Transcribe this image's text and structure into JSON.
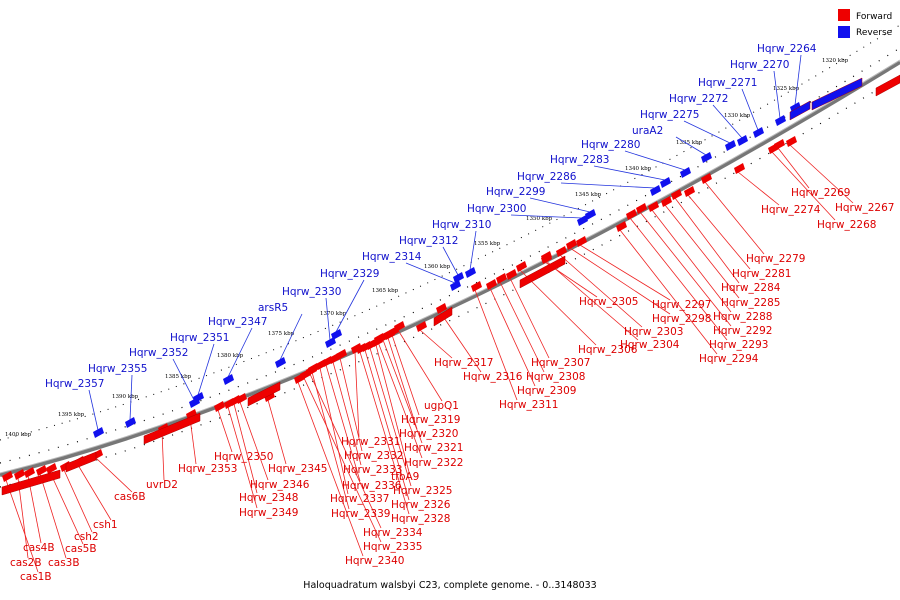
{
  "legend": {
    "forward": {
      "label": "Forward",
      "color": "#ee0000"
    },
    "reverse": {
      "label": "Reverse",
      "color": "#1111ee"
    }
  },
  "caption": "Haloquadratum walsbyi C23, complete genome. - 0..3148033",
  "tick_labels": [
    "1320 kbp",
    "1325 kbp",
    "1330 kbp",
    "1335 kbp",
    "1340 kbp",
    "1345 kbp",
    "1350 kbp",
    "1355 kbp",
    "1360 kbp",
    "1365 kbp",
    "1370 kbp",
    "1375 kbp",
    "1380 kbp",
    "1385 kbp",
    "1390 kbp",
    "1395 kbp",
    "1400 kbp"
  ],
  "reverse_genes": [
    "Hqrw_2264",
    "Hqrw_2270",
    "Hqrw_2271",
    "Hqrw_2272",
    "Hqrw_2275",
    "uraA2",
    "Hqrw_2280",
    "Hqrw_2283",
    "Hqrw_2286",
    "Hqrw_2299",
    "Hqrw_2300",
    "Hqrw_2310",
    "Hqrw_2312",
    "Hqrw_2314",
    "Hqrw_2329",
    "Hqrw_2330",
    "arsR5",
    "Hqrw_2347",
    "Hqrw_2351",
    "Hqrw_2352",
    "Hqrw_2355",
    "Hqrw_2357"
  ],
  "forward_genes": [
    "Hqrw_2269",
    "Hqrw_2267",
    "Hqrw_2274",
    "Hqrw_2268",
    "Hqrw_2279",
    "Hqrw_2281",
    "Hqrw_2284",
    "Hqrw_2285",
    "Hqrw_2288",
    "Hqrw_2292",
    "Hqrw_2293",
    "Hqrw_2294",
    "Hqrw_2297",
    "Hqrw_2298",
    "Hqrw_2303",
    "Hqrw_2304",
    "Hqrw_2305",
    "Hqrw_2306",
    "Hqrw_2307",
    "Hqrw_2308",
    "Hqrw_2309",
    "Hqrw_2311",
    "Hqrw_2316",
    "Hqrw_2317",
    "ugpQ1",
    "Hqrw_2319",
    "Hqrw_2320",
    "Hqrw_2321",
    "Hqrw_2322",
    "tfbA9",
    "Hqrw_2325",
    "Hqrw_2326",
    "Hqrw_2328",
    "Hqrw_2331",
    "Hqrw_2332",
    "Hqrw_2333",
    "Hqrw_2336",
    "Hqrw_2337",
    "Hqrw_2339",
    "Hqrw_2334",
    "Hqrw_2335",
    "Hqrw_2340",
    "Hqrw_2345",
    "Hqrw_2346",
    "Hqrw_2348",
    "Hqrw_2349",
    "Hqrw_2350",
    "Hqrw_2353",
    "uvrD2",
    "cas6B",
    "csh1",
    "csh2",
    "cas5B",
    "cas3B",
    "cas4B",
    "cas2B",
    "cas1B"
  ]
}
